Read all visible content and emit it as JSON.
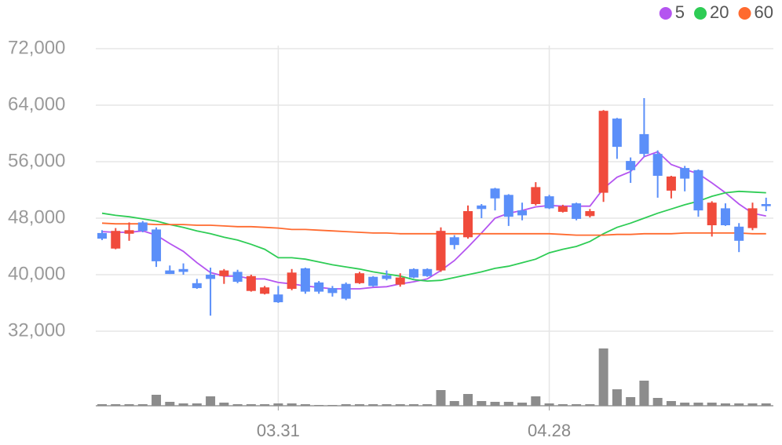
{
  "chart_data": {
    "type": "candlestick",
    "categories": [
      null,
      null,
      null,
      null,
      null,
      null,
      null,
      null,
      null,
      null,
      null,
      null,
      null,
      "03.31",
      null,
      null,
      null,
      null,
      null,
      null,
      null,
      null,
      null,
      null,
      null,
      null,
      null,
      null,
      null,
      null,
      null,
      null,
      null,
      "04.28",
      null,
      null,
      null,
      null,
      null,
      null,
      null,
      null,
      null,
      null,
      null,
      null,
      null,
      null,
      null,
      null
    ],
    "open": [
      45900,
      43700,
      45800,
      47400,
      46400,
      40600,
      40800,
      38800,
      40000,
      39800,
      40400,
      37700,
      37300,
      37200,
      38000,
      40900,
      38900,
      38100,
      38700,
      38800,
      39700,
      39900,
      38600,
      40800,
      40800,
      40600,
      45300,
      45300,
      49800,
      52200,
      51300,
      49100,
      50000,
      51100,
      48900,
      50100,
      48300,
      51600,
      62100,
      56100,
      59900,
      57100,
      51900,
      55100,
      54800,
      47000,
      49400,
      46800,
      46600,
      50000
    ],
    "high": [
      46300,
      46600,
      47400,
      47600,
      46700,
      41300,
      41600,
      39400,
      41000,
      40800,
      40700,
      40000,
      38400,
      38400,
      40800,
      41000,
      39100,
      38400,
      38900,
      40400,
      39800,
      40600,
      40200,
      40900,
      40900,
      46700,
      45600,
      49800,
      50000,
      52300,
      51400,
      50200,
      53100,
      51300,
      49900,
      50200,
      49300,
      63300,
      62200,
      56600,
      65000,
      57600,
      54000,
      55400,
      54900,
      50400,
      50100,
      47300,
      50200,
      50900
    ],
    "low": [
      44900,
      43600,
      44800,
      46000,
      41100,
      40100,
      40000,
      38000,
      34200,
      38700,
      38800,
      37600,
      37200,
      36000,
      37800,
      37300,
      37300,
      36900,
      36400,
      38700,
      38300,
      39200,
      38300,
      39500,
      39700,
      40400,
      43600,
      45100,
      48000,
      49100,
      46900,
      47700,
      49800,
      49300,
      48800,
      47700,
      48100,
      50300,
      56400,
      53000,
      56700,
      50900,
      50800,
      51800,
      48200,
      45400,
      46900,
      43200,
      46300,
      49000
    ],
    "close": [
      45100,
      46200,
      46300,
      46200,
      41900,
      40100,
      40400,
      38100,
      39400,
      40600,
      39000,
      39800,
      38200,
      36100,
      40300,
      37600,
      37600,
      37400,
      36600,
      40200,
      38400,
      39400,
      39600,
      39600,
      39800,
      46200,
      44200,
      49000,
      49300,
      50800,
      48200,
      48400,
      52400,
      49400,
      49700,
      47900,
      49000,
      63200,
      58100,
      54800,
      57100,
      54000,
      53900,
      53600,
      49100,
      50200,
      47000,
      44800,
      49400,
      49700
    ],
    "up_color": "#f04b3c",
    "down_color": "#5b8ff9",
    "ma_series": [
      {
        "name": "5",
        "color": "#b455f0",
        "values": [
          46100,
          46000,
          46000,
          46200,
          45600,
          44400,
          43300,
          41700,
          40300,
          39800,
          39800,
          39400,
          39400,
          38900,
          38700,
          38400,
          38200,
          38000,
          38000,
          38000,
          38200,
          38300,
          38700,
          39000,
          39400,
          40600,
          42000,
          43900,
          45900,
          48000,
          48700,
          49100,
          49600,
          49800,
          49700,
          49700,
          49700,
          52200,
          53800,
          54600,
          56700,
          57400,
          55600,
          54900,
          54300,
          53000,
          51600,
          50000,
          48700,
          48300
        ]
      },
      {
        "name": "20",
        "color": "#2ecc55",
        "values": [
          48700,
          48400,
          48200,
          47900,
          47600,
          47100,
          46700,
          46200,
          45800,
          45300,
          44900,
          44300,
          43600,
          42400,
          42400,
          42200,
          41800,
          41400,
          41100,
          40800,
          40400,
          40100,
          39800,
          39300,
          39100,
          39200,
          39600,
          40000,
          40400,
          40900,
          41200,
          41700,
          42200,
          43100,
          43600,
          44000,
          44700,
          45800,
          46700,
          47300,
          48000,
          48700,
          49300,
          49900,
          50400,
          51100,
          51600,
          51800,
          51700,
          51600
        ]
      },
      {
        "name": "60",
        "color": "#ff6a2f",
        "values": [
          47300,
          47200,
          47200,
          47200,
          47100,
          47100,
          47100,
          47000,
          47000,
          46900,
          46800,
          46800,
          46700,
          46600,
          46400,
          46400,
          46300,
          46200,
          46100,
          46000,
          45900,
          45900,
          45800,
          45800,
          45800,
          45800,
          45800,
          45800,
          45800,
          45800,
          45800,
          45800,
          45800,
          45800,
          45700,
          45600,
          45600,
          45600,
          45700,
          45700,
          45800,
          45800,
          45800,
          45900,
          45900,
          45900,
          45900,
          45900,
          45800,
          45800
        ]
      }
    ],
    "volume": {
      "color": "#8c8c8c",
      "values": [
        2,
        2,
        2,
        2,
        14,
        5,
        3,
        3,
        12,
        4,
        2,
        2,
        2,
        3,
        3,
        2,
        1,
        1,
        2,
        2,
        2,
        2,
        2,
        2,
        2,
        20,
        6,
        15,
        6,
        5,
        5,
        4,
        12,
        3,
        2,
        2,
        2,
        73,
        21,
        11,
        32,
        10,
        6,
        4,
        4,
        4,
        3,
        3,
        3,
        3
      ],
      "axis": "y2"
    },
    "ylim": [
      28000,
      74000
    ],
    "yticks": [
      {
        "value": 32000,
        "label": "32,000"
      },
      {
        "value": 40000,
        "label": "40,000"
      },
      {
        "value": 48000,
        "label": "48,000"
      },
      {
        "value": 56000,
        "label": "56,000"
      },
      {
        "value": 64000,
        "label": "64,000"
      },
      {
        "value": 72000,
        "label": "72,000"
      }
    ],
    "y2lim": [
      0,
      100
    ],
    "grid": true,
    "legend": "top-right"
  }
}
